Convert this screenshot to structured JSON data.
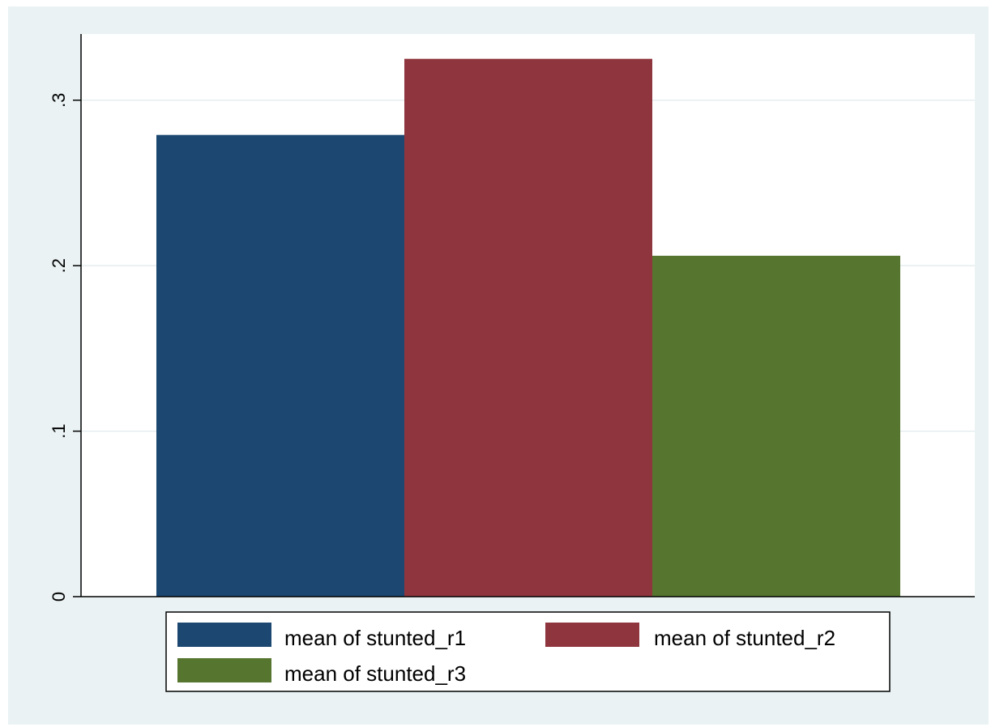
{
  "chart_data": {
    "type": "bar",
    "title": "",
    "xlabel": "",
    "ylabel": "",
    "ylim": [
      0,
      0.34
    ],
    "yticks": [
      {
        "value": 0,
        "label": "0"
      },
      {
        "value": 0.1,
        "label": ".1"
      },
      {
        "value": 0.2,
        "label": ".2"
      },
      {
        "value": 0.3,
        "label": ".3"
      }
    ],
    "grid": true,
    "legend_position": "bottom",
    "series": [
      {
        "name": "mean of stunted_r1",
        "value": 0.279,
        "color": "#1b4770"
      },
      {
        "name": "mean of stunted_r2",
        "value": 0.325,
        "color": "#8f353d"
      },
      {
        "name": "mean of stunted_r3",
        "value": 0.206,
        "color": "#56752f"
      }
    ],
    "colors": {
      "background": "#eaf2f3",
      "plot_background": "#ffffff",
      "gridline": "#e5eef0"
    }
  }
}
